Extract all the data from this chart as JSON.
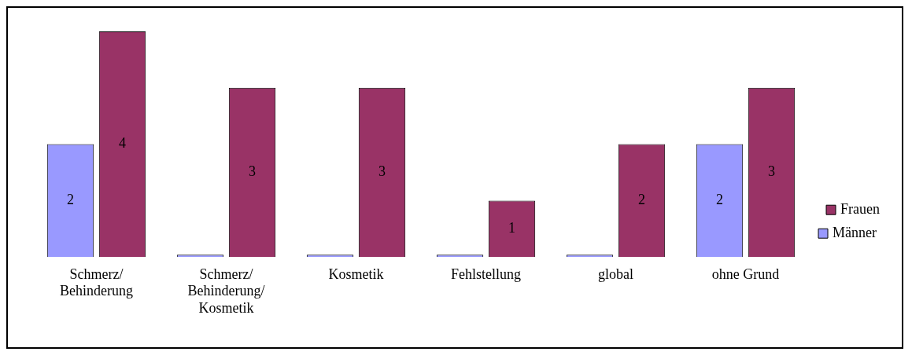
{
  "chart_data": {
    "type": "bar",
    "categories": [
      "Schmerz/Behinderung",
      "Schmerz/Behinderung/Kosmetik",
      "Kosmetik",
      "Fehlstellung",
      "global",
      "ohne Grund"
    ],
    "series": [
      {
        "name": "Männer",
        "color": "#9999ff",
        "values": [
          2,
          0,
          0,
          0,
          0,
          2
        ],
        "value_labels": [
          "2",
          null,
          null,
          null,
          null,
          "2"
        ]
      },
      {
        "name": "Frauen",
        "color": "#993366",
        "values": [
          4,
          3,
          3,
          1,
          2,
          3
        ],
        "value_labels": [
          "4",
          "3",
          "3",
          "1",
          "2",
          "3"
        ]
      }
    ],
    "legend": "right",
    "grid": false
  }
}
